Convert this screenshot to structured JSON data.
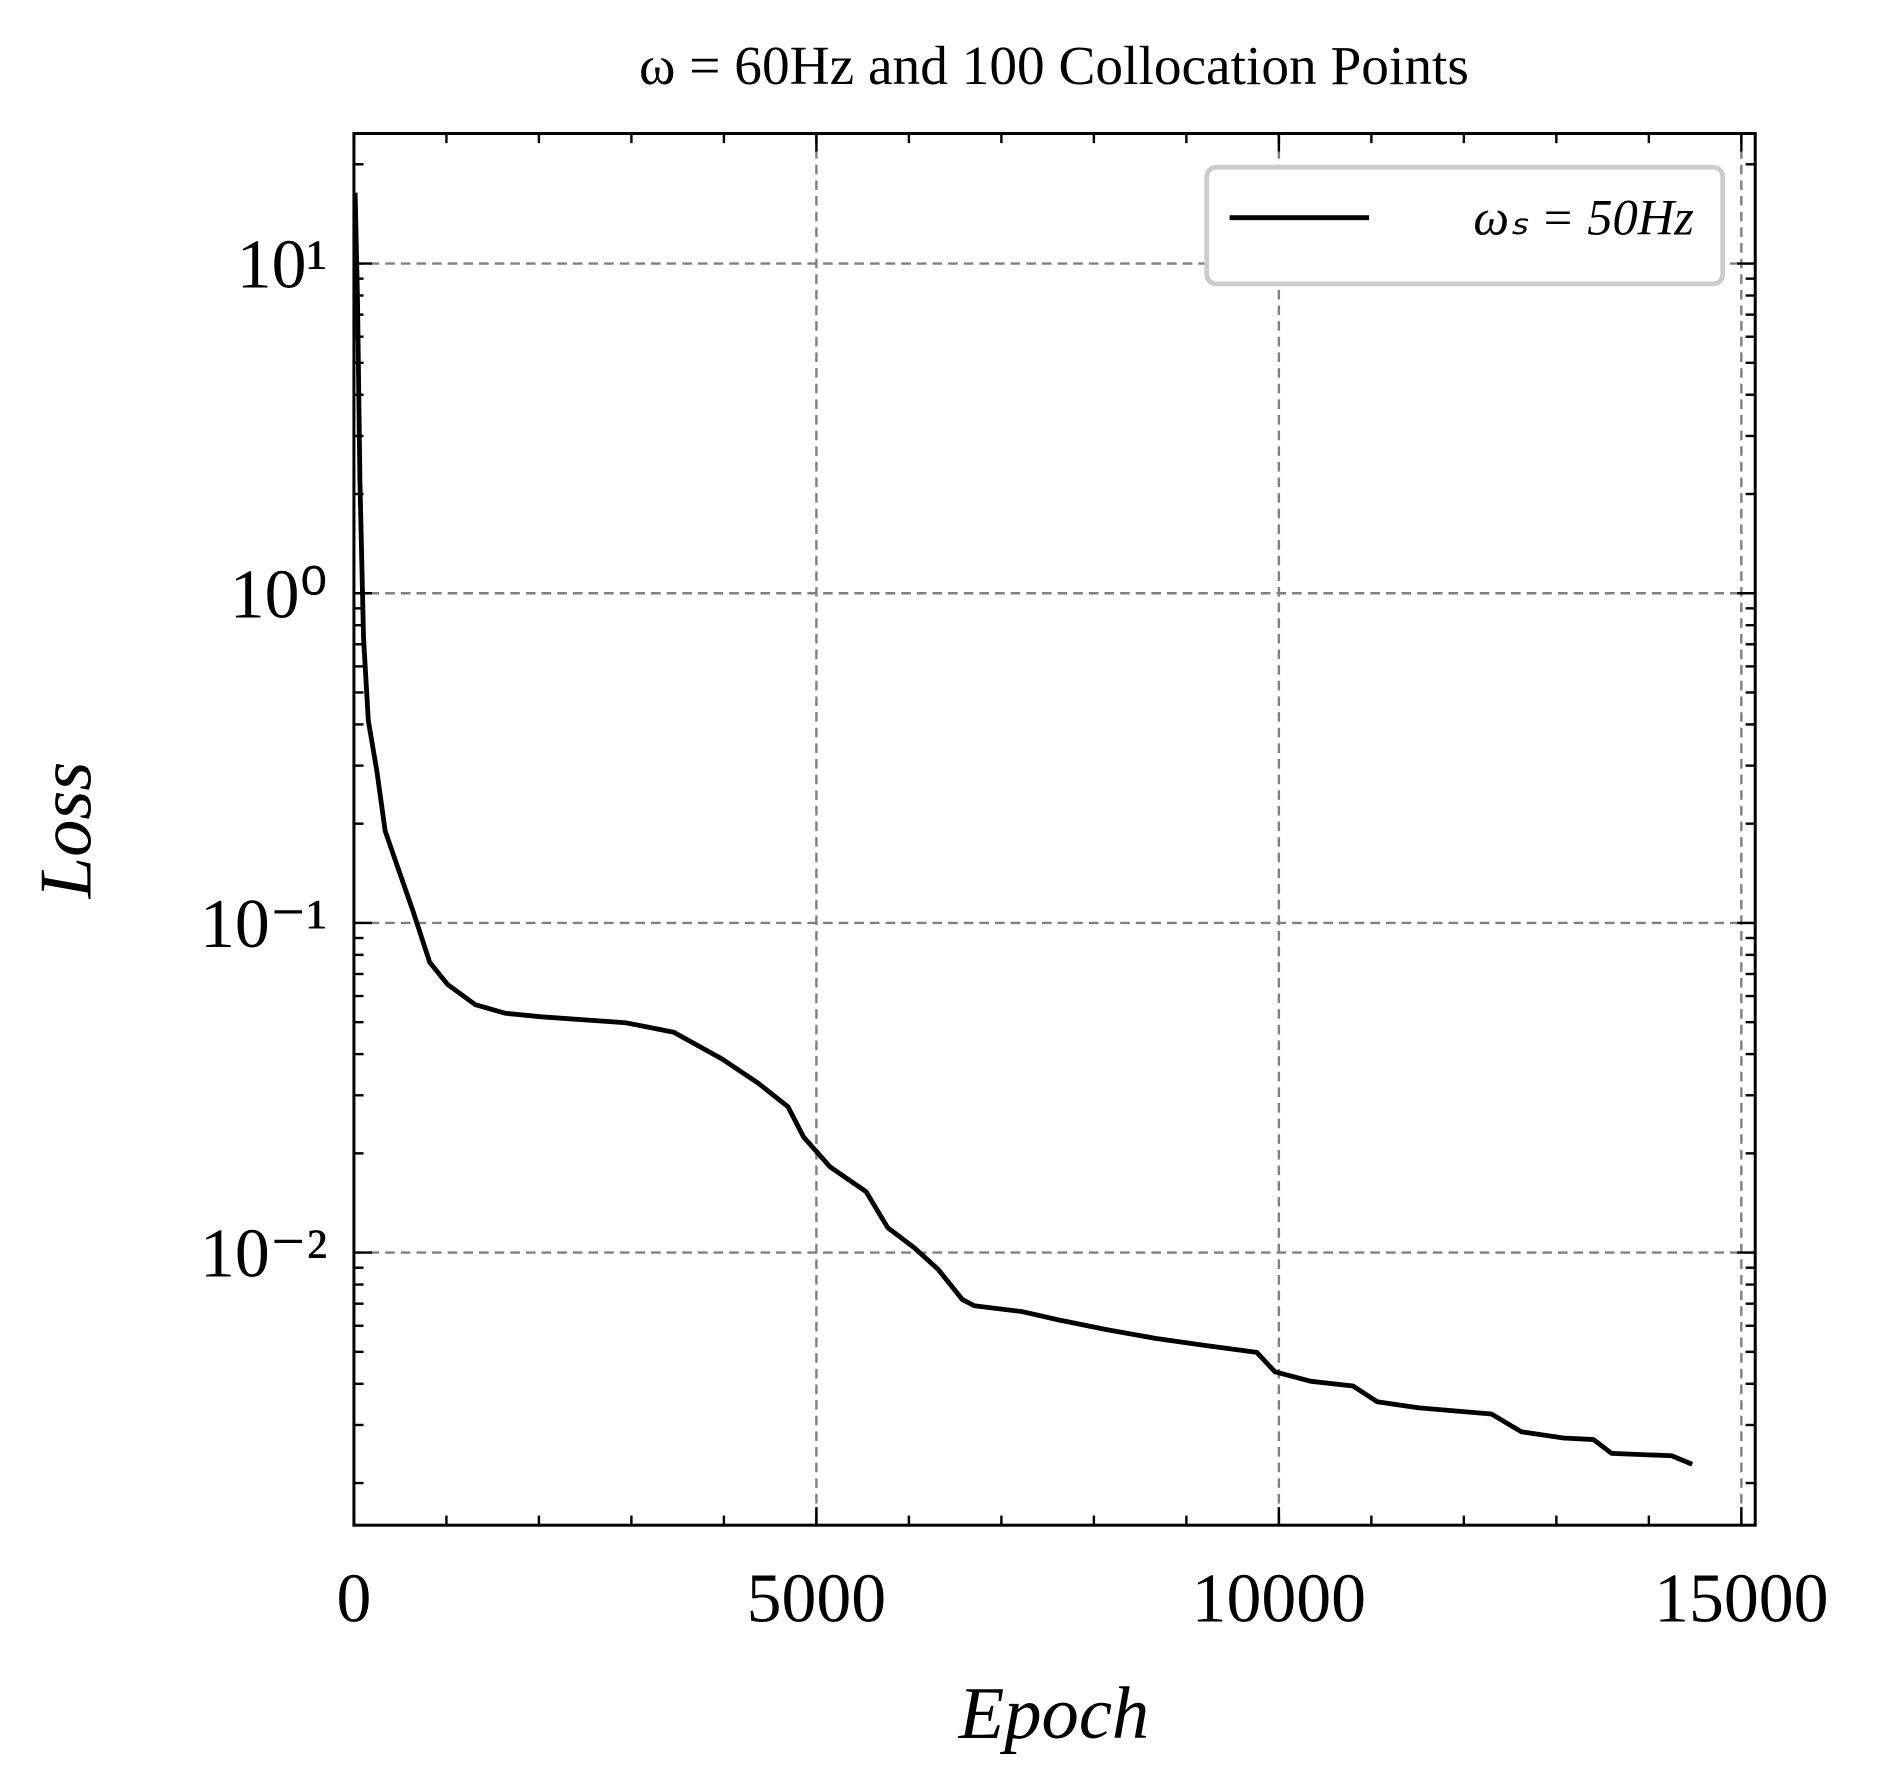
{
  "chart_data": {
    "type": "line",
    "title": "ω = 60Hz and 100 Collocation Points",
    "x_label": "Epoch",
    "y_label": "Loss",
    "log_y": true,
    "grid": true,
    "legend": "upper right",
    "xlim": [
      0,
      15150
    ],
    "xticks": [
      0,
      5000,
      10000,
      15000
    ],
    "ylim": [
      0.00149,
      24.8
    ],
    "yticks": [
      {
        "value": 0.01,
        "label": "10⁻²"
      },
      {
        "value": 0.1,
        "label": "10⁻¹"
      },
      {
        "value": 1,
        "label": "10⁰"
      },
      {
        "value": 10,
        "label": "10¹"
      }
    ],
    "x": [
      13,
      39,
      65,
      104,
      156,
      247,
      338,
      468,
      637,
      819,
      1014,
      1313,
      1638,
      2028,
      2938,
      3458,
      3978,
      4368,
      4693,
      4862,
      5148,
      5538,
      5771,
      6057,
      6317,
      6577,
      6707,
      7227,
      7617,
      8137,
      8657,
      9177,
      9762,
      9957,
      10347,
      10802,
      11062,
      11517,
      12297,
      12622,
      13077,
      13402,
      13597,
      14247,
      14468
    ],
    "series": [
      {
        "name": "ωₛ = 50Hz",
        "color": "#000000",
        "values": [
          16.4,
          7.7,
          2.18,
          0.73,
          0.41,
          0.29,
          0.19,
          0.149,
          0.109,
          0.076,
          0.065,
          0.0565,
          0.0532,
          0.0519,
          0.0498,
          0.0466,
          0.0387,
          0.0327,
          0.0277,
          0.0224,
          0.0182,
          0.0153,
          0.0119,
          0.01035,
          0.00889,
          0.00721,
          0.0069,
          0.00662,
          0.00625,
          0.00584,
          0.0055,
          0.00524,
          0.00498,
          0.00435,
          0.00407,
          0.00394,
          0.00353,
          0.00338,
          0.00324,
          0.00286,
          0.00274,
          0.00271,
          0.00246,
          0.00242,
          0.00228
        ]
      }
    ]
  }
}
